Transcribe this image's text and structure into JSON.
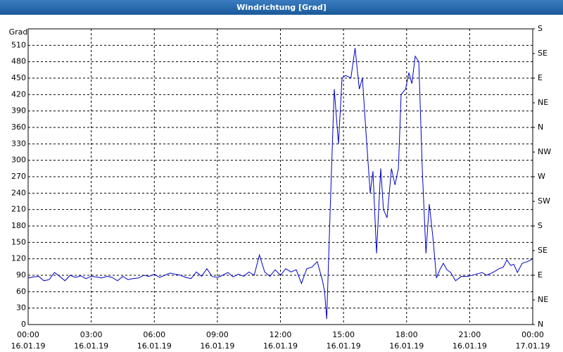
{
  "chart_data": {
    "type": "line",
    "title": "Windrichtung [Grad]",
    "y_label": "Grad",
    "xlim": [
      0,
      24
    ],
    "xticks": [
      {
        "value": 0,
        "label": "00:00",
        "date": "16.01.19"
      },
      {
        "value": 3,
        "label": "03:00",
        "date": "16.01.19"
      },
      {
        "value": 6,
        "label": "06:00",
        "date": "16.01.19"
      },
      {
        "value": 9,
        "label": "09:00",
        "date": "16.01.19"
      },
      {
        "value": 12,
        "label": "12:00",
        "date": "16.01.19"
      },
      {
        "value": 15,
        "label": "15:00",
        "date": "16.01.19"
      },
      {
        "value": 18,
        "label": "18:00",
        "date": "16.01.19"
      },
      {
        "value": 21,
        "label": "21:00",
        "date": "16.01.19"
      },
      {
        "value": 24,
        "label": "00:00",
        "date": "17.01.19"
      }
    ],
    "ylim": [
      0,
      540
    ],
    "yticks": [
      0,
      30,
      60,
      90,
      120,
      150,
      180,
      210,
      240,
      270,
      300,
      330,
      360,
      390,
      420,
      450,
      480,
      510
    ],
    "y2lim": [
      0,
      540
    ],
    "y2ticks": [
      {
        "value": 0,
        "label": "N"
      },
      {
        "value": 45,
        "label": "NE"
      },
      {
        "value": 90,
        "label": "E"
      },
      {
        "value": 135,
        "label": "SE"
      },
      {
        "value": 180,
        "label": "S"
      },
      {
        "value": 225,
        "label": "SW"
      },
      {
        "value": 270,
        "label": "W"
      },
      {
        "value": 315,
        "label": "NW"
      },
      {
        "value": 360,
        "label": "N"
      },
      {
        "value": 405,
        "label": "NE"
      },
      {
        "value": 450,
        "label": "E"
      },
      {
        "value": 495,
        "label": "SE"
      },
      {
        "value": 540,
        "label": "S"
      }
    ],
    "grid": true,
    "color": "#0000c8",
    "x": [
      0,
      0.25,
      0.5,
      0.75,
      1,
      1.25,
      1.5,
      1.75,
      2,
      2.25,
      2.5,
      2.75,
      3,
      3.25,
      3.5,
      3.75,
      4,
      4.25,
      4.5,
      4.75,
      5,
      5.25,
      5.5,
      5.75,
      6,
      6.25,
      6.5,
      6.75,
      7,
      7.25,
      7.5,
      7.75,
      8,
      8.25,
      8.5,
      8.75,
      9,
      9.25,
      9.5,
      9.75,
      10,
      10.25,
      10.5,
      10.75,
      11,
      11.25,
      11.5,
      11.75,
      12,
      12.25,
      12.5,
      12.75,
      13,
      13.25,
      13.5,
      13.75,
      14,
      14.1,
      14.2,
      14.4,
      14.56,
      14.76,
      14.93,
      15.1,
      15.35,
      15.55,
      15.75,
      15.9,
      16.07,
      16.27,
      16.4,
      16.57,
      16.77,
      16.9,
      17.07,
      17.28,
      17.45,
      17.61,
      17.74,
      17.95,
      18.11,
      18.25,
      18.41,
      18.58,
      18.75,
      18.92,
      19.08,
      19.25,
      19.42,
      19.58,
      19.75,
      19.92,
      20.1,
      20.33,
      20.6,
      20.93,
      21.3,
      21.6,
      21.8,
      22.1,
      22.4,
      22.6,
      22.77,
      22.95,
      23.1,
      23.27,
      23.5,
      23.75,
      24
    ],
    "values": [
      85,
      87,
      88,
      80,
      82,
      95,
      88,
      80,
      90,
      86,
      89,
      84,
      88,
      87,
      85,
      88,
      86,
      80,
      88,
      82,
      84,
      85,
      90,
      88,
      92,
      86,
      90,
      94,
      92,
      90,
      86,
      84,
      96,
      88,
      102,
      88,
      86,
      90,
      95,
      87,
      92,
      88,
      96,
      90,
      127,
      96,
      88,
      100,
      90,
      102,
      96,
      100,
      75,
      102,
      105,
      115,
      80,
      60,
      10,
      250,
      430,
      330,
      450,
      455,
      450,
      505,
      430,
      450,
      350,
      240,
      280,
      130,
      285,
      210,
      195,
      285,
      255,
      285,
      420,
      430,
      460,
      440,
      490,
      480,
      280,
      130,
      220,
      160,
      85,
      100,
      112,
      100,
      95,
      80,
      88,
      88,
      92,
      95,
      90,
      95,
      102,
      105,
      118,
      108,
      110,
      95,
      112,
      115,
      120
    ]
  }
}
